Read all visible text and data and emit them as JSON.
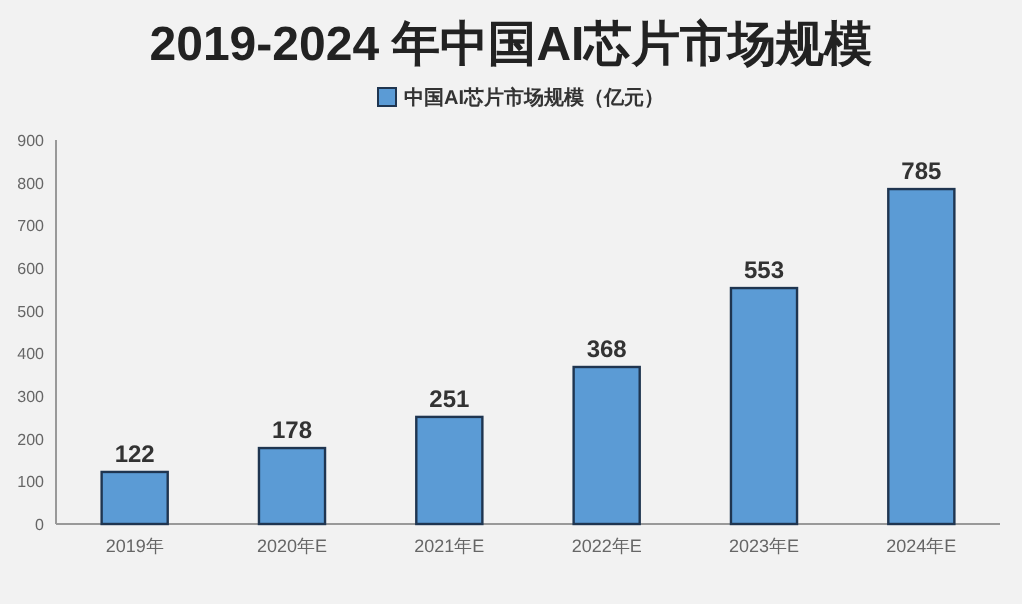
{
  "chart_data": {
    "type": "bar",
    "title": "2019-2024 年中国AI芯片市场规模",
    "categories": [
      "2019年",
      "2020年E",
      "2021年E",
      "2022年E",
      "2023年E",
      "2024年E"
    ],
    "series": [
      {
        "name": "中国AI芯片市场规模（亿元）",
        "color": "#5b9bd5",
        "values": [
          122,
          178,
          251,
          368,
          553,
          785
        ]
      }
    ],
    "ylim": [
      0,
      900
    ],
    "yticks": [
      0,
      100,
      200,
      300,
      400,
      500,
      600,
      700,
      800,
      900
    ],
    "data_labels": true,
    "legend": "top"
  }
}
